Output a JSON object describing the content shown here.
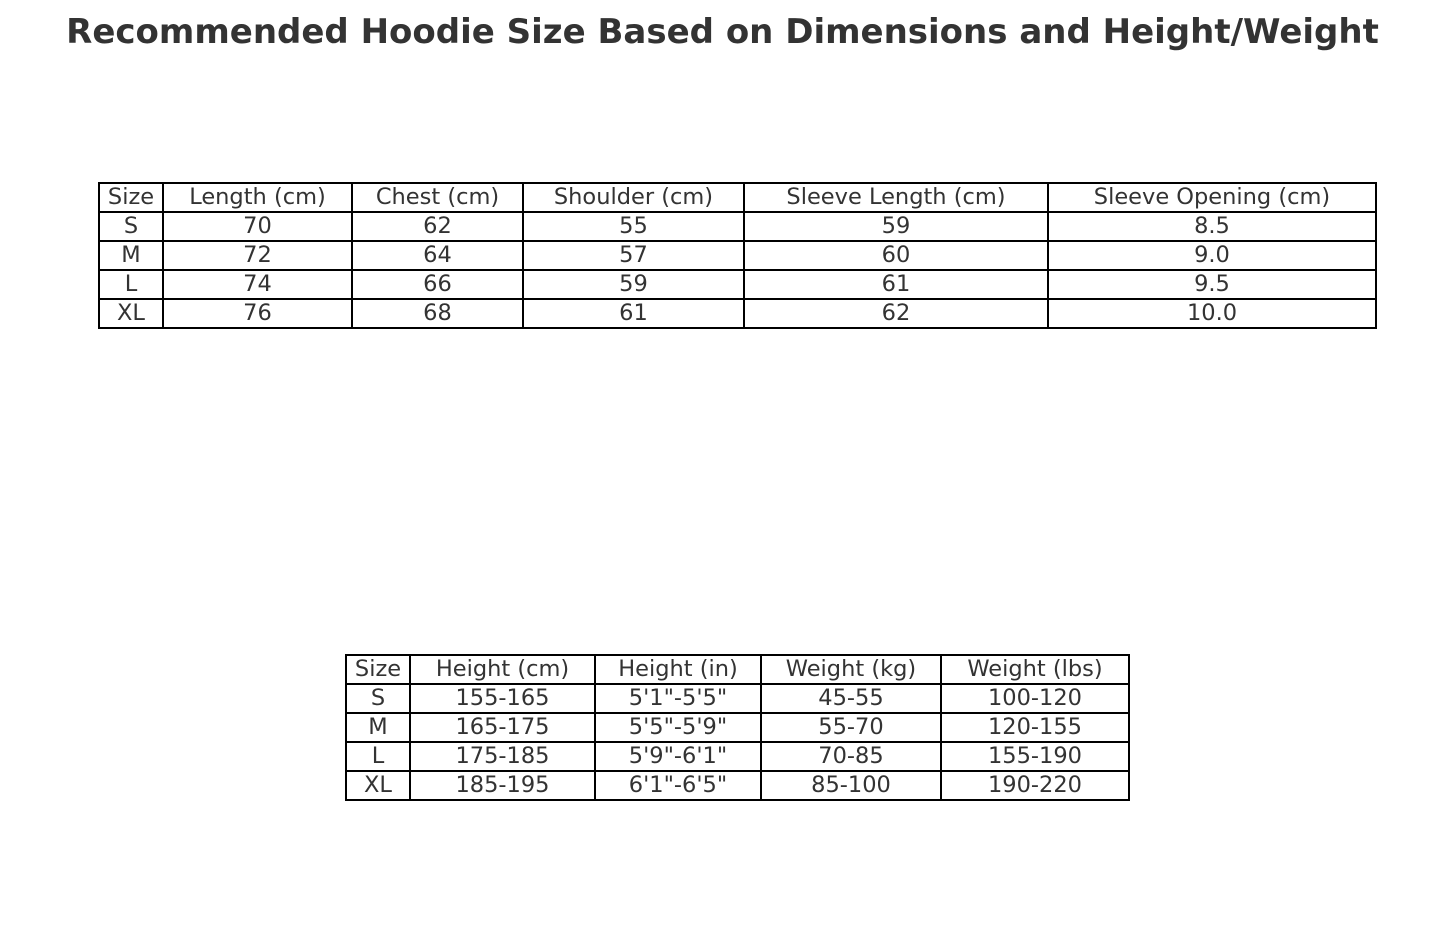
{
  "chart_data": {
    "type": "table",
    "title": "Recommended Hoodie Size Based on Dimensions and Height/Weight",
    "tables": [
      {
        "columns": [
          "Size",
          "Length (cm)",
          "Chest (cm)",
          "Shoulder (cm)",
          "Sleeve Length (cm)",
          "Sleeve Opening (cm)"
        ],
        "rows": [
          [
            "S",
            "70",
            "62",
            "55",
            "59",
            "8.5"
          ],
          [
            "M",
            "72",
            "64",
            "57",
            "60",
            "9.0"
          ],
          [
            "L",
            "74",
            "66",
            "59",
            "61",
            "9.5"
          ],
          [
            "XL",
            "76",
            "68",
            "61",
            "62",
            "10.0"
          ]
        ]
      },
      {
        "columns": [
          "Size",
          "Height (cm)",
          "Height (in)",
          "Weight (kg)",
          "Weight (lbs)"
        ],
        "rows": [
          [
            "S",
            "155-165",
            "5'1\"-5'5\"",
            "45-55",
            "100-120"
          ],
          [
            "M",
            "165-175",
            "5'5\"-5'9\"",
            "55-70",
            "120-155"
          ],
          [
            "L",
            "175-185",
            "5'9\"-6'1\"",
            "70-85",
            "155-190"
          ],
          [
            "XL",
            "185-195",
            "6'1\"-6'5\"",
            "85-100",
            "190-220"
          ]
        ]
      }
    ]
  }
}
